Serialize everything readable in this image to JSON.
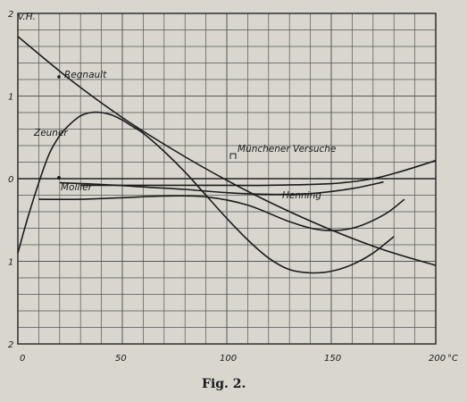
{
  "chart_data": {
    "type": "line",
    "title": "",
    "caption": "Fig. 2.",
    "y_unit": "v.H.",
    "x_unit": "°C",
    "xlim": [
      0,
      200
    ],
    "ylim": [
      -2,
      2
    ],
    "grid": true,
    "x_ticks": [
      {
        "value": 0,
        "label": "0"
      },
      {
        "value": 50,
        "label": "50"
      },
      {
        "value": 100,
        "label": "100"
      },
      {
        "value": 150,
        "label": "150"
      },
      {
        "value": 200,
        "label": "200"
      }
    ],
    "y_ticks": [
      {
        "value": 2,
        "label": "2"
      },
      {
        "value": 1,
        "label": "1"
      },
      {
        "value": 0,
        "label": "0"
      },
      {
        "value": -1,
        "label": "1"
      },
      {
        "value": -2,
        "label": "2"
      }
    ],
    "series": [
      {
        "name": "Regnault",
        "x": [
          0,
          25,
          50,
          75,
          100,
          125,
          150,
          175,
          200
        ],
        "y": [
          1.72,
          1.2,
          0.74,
          0.34,
          -0.02,
          -0.34,
          -0.62,
          -0.86,
          -1.05
        ]
      },
      {
        "name": "Zeuner",
        "x": [
          0,
          5,
          10,
          15,
          20,
          25,
          30,
          35,
          40,
          45,
          50,
          55,
          60,
          70,
          80,
          90,
          100,
          110,
          120,
          130,
          140,
          150,
          160,
          170,
          180
        ],
        "y": [
          -0.9,
          -0.45,
          -0.05,
          0.3,
          0.52,
          0.66,
          0.76,
          0.8,
          0.8,
          0.77,
          0.71,
          0.63,
          0.55,
          0.33,
          0.08,
          -0.2,
          -0.48,
          -0.74,
          -0.96,
          -1.1,
          -1.14,
          -1.12,
          -1.04,
          -0.9,
          -0.7
        ]
      },
      {
        "name": "Münchener Versuche",
        "x": [
          20,
          40,
          60,
          80,
          100,
          120,
          140,
          160,
          175
        ],
        "y": [
          -0.05,
          -0.07,
          -0.1,
          -0.13,
          -0.17,
          -0.19,
          -0.18,
          -0.12,
          -0.04
        ]
      },
      {
        "name": "Henning",
        "x": [
          10,
          30,
          50,
          70,
          90,
          110,
          130,
          145,
          160,
          175,
          185
        ],
        "y": [
          -0.25,
          -0.25,
          -0.23,
          -0.21,
          -0.22,
          -0.32,
          -0.52,
          -0.62,
          -0.6,
          -0.44,
          -0.25
        ]
      },
      {
        "name": "Mollier",
        "x": [
          30,
          60,
          90,
          120,
          150,
          170,
          185,
          200
        ],
        "y": [
          -0.08,
          -0.08,
          -0.08,
          -0.08,
          -0.06,
          0.0,
          0.1,
          0.22
        ]
      }
    ]
  }
}
